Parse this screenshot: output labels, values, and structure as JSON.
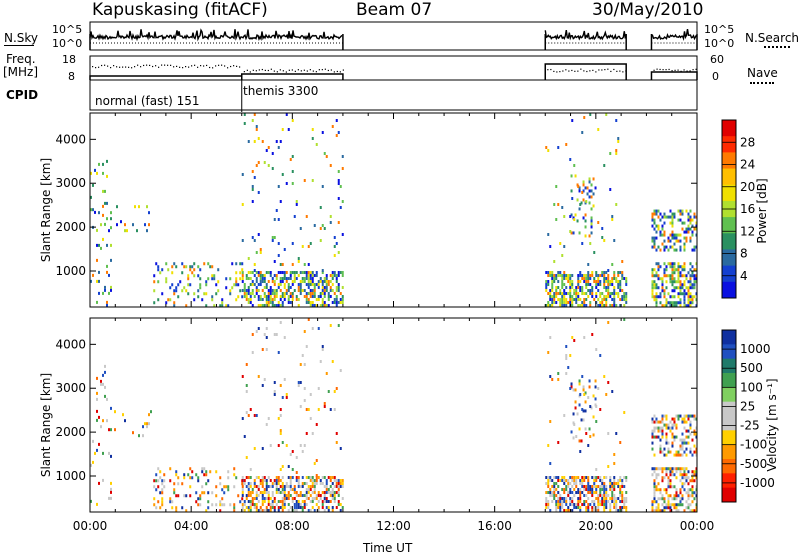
{
  "header": {
    "station": "Kapuskasing (fitACF)",
    "beam": "Beam 07",
    "date": "30/May/2010"
  },
  "left_labels": {
    "nsky": "N.Sky",
    "freq": "Freq.",
    "freq_unit": "[MHz]",
    "cpid": "CPID"
  },
  "right_labels": {
    "nsearch": "N.Search",
    "nave": "Nave"
  },
  "noise_axis": {
    "left_ticks": [
      "10^5",
      "10^0"
    ],
    "right_ticks": [
      "10^5",
      "10^0"
    ]
  },
  "freq_axis": {
    "left_ticks": [
      "18",
      "8"
    ],
    "right_ticks": [
      "60",
      "0"
    ]
  },
  "cpid_segments": [
    {
      "label": "normal (fast) 151",
      "start_h": 0.0,
      "end_h": 6.0
    },
    {
      "label": "themis 3300",
      "start_h": 6.0,
      "end_h": 10.0
    }
  ],
  "chart_data": [
    {
      "type": "heatmap",
      "name": "power",
      "ylabel": "Slant Range [km]",
      "xlabel": "Time UT",
      "xlim": [
        0,
        24
      ],
      "ylim": [
        180,
        4600
      ],
      "y_ticks": [
        1000,
        2000,
        3000,
        4000
      ],
      "x_tick_labels": [
        "00:00",
        "04:00",
        "08:00",
        "12:00",
        "16:00",
        "20:00",
        "00:00"
      ],
      "colorbar_label": "Power [dB]",
      "colorbar_ticks": [
        "28",
        "24",
        "20",
        "16",
        "12",
        "8",
        "4"
      ],
      "colorbar_colors": [
        "#e00000",
        "#ff2a00",
        "#ff7a00",
        "#ffbf00",
        "#f0e000",
        "#b0e030",
        "#60c050",
        "#2a9060",
        "#2a6aa0",
        "#1440d0",
        "#0a10e0"
      ],
      "data_windows_h": [
        [
          0,
          10
        ],
        [
          18,
          21.2
        ],
        [
          22.2,
          24
        ]
      ]
    },
    {
      "type": "heatmap",
      "name": "velocity",
      "ylabel": "Slant Range [km]",
      "xlabel": "Time UT",
      "xlim": [
        0,
        24
      ],
      "ylim": [
        180,
        4600
      ],
      "y_ticks": [
        1000,
        2000,
        3000,
        4000
      ],
      "x_tick_labels": [
        "00:00",
        "04:00",
        "08:00",
        "12:00",
        "16:00",
        "20:00",
        "00:00"
      ],
      "colorbar_label": "Velocity [m s⁻¹]",
      "colorbar_ticks": [
        "1000",
        "500",
        "100",
        "25",
        "-25",
        "-100",
        "-500",
        "-1000"
      ],
      "colorbar_colors": [
        "#1030a0",
        "#2050c0",
        "#1f7a6a",
        "#40a050",
        "#80d060",
        "#c8c8c8",
        "#c8c8c8",
        "#ffd000",
        "#ff9a00",
        "#ff6a00",
        "#ff2000",
        "#e00000"
      ],
      "data_windows_h": [
        [
          0,
          10
        ],
        [
          18,
          21.2
        ],
        [
          22.2,
          24
        ]
      ]
    }
  ],
  "x_axis": {
    "title": "Time UT",
    "tick_labels": [
      "00:00",
      "04:00",
      "08:00",
      "12:00",
      "16:00",
      "20:00",
      "00:00"
    ]
  }
}
